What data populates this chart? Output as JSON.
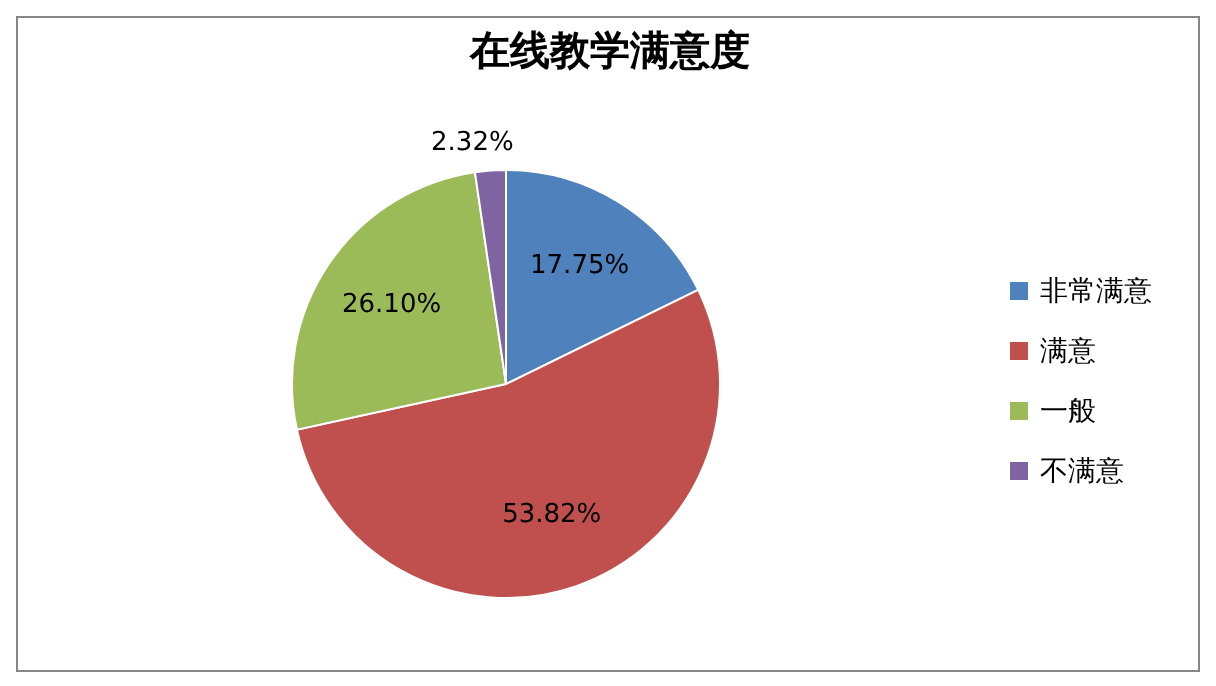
{
  "chart_data": {
    "type": "pie",
    "title": "在线教学满意度",
    "categories": [
      "非常满意",
      "满意",
      "一般",
      "不满意"
    ],
    "values": [
      17.75,
      53.82,
      26.1,
      2.32
    ],
    "colors": [
      "#4f81bd",
      "#c0504d",
      "#9bbb59",
      "#8064a2"
    ],
    "value_labels": [
      "17.75%",
      "53.82%",
      "26.10%",
      "2.32%"
    ],
    "legend": "right"
  }
}
